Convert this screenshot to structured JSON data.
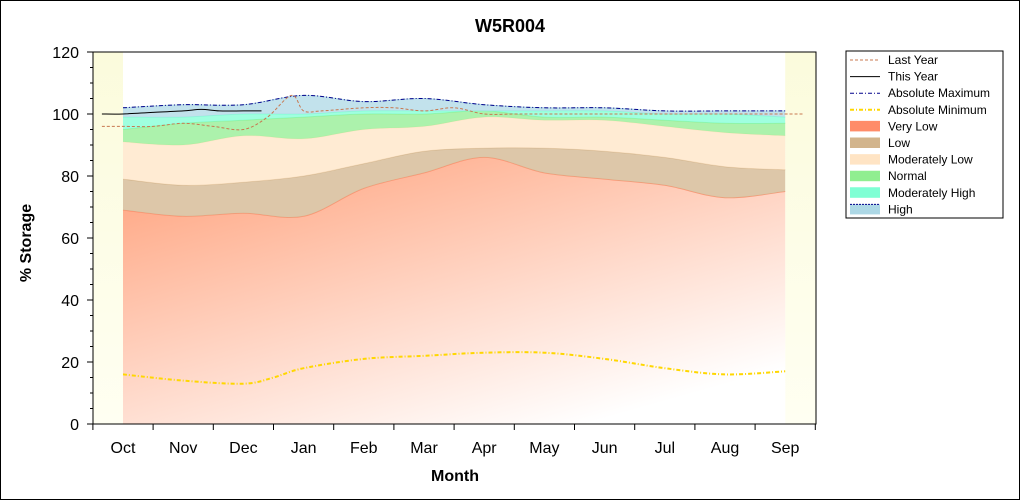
{
  "chart_data": {
    "type": "area",
    "title": "W5R004",
    "xlabel": "Month",
    "ylabel": "% Storage",
    "ylim": [
      0,
      120
    ],
    "yticks": [
      0,
      20,
      40,
      60,
      80,
      100,
      120
    ],
    "categories": [
      "Oct",
      "Nov",
      "Dec",
      "Jan",
      "Feb",
      "Mar",
      "Apr",
      "May",
      "Jun",
      "Jul",
      "Aug",
      "Sep"
    ],
    "legend_position": "right",
    "bands": [
      {
        "name": "Very Low",
        "color": "#ff8c69",
        "lower": [
          0,
          0,
          0,
          0,
          0,
          0,
          0,
          0,
          0,
          0,
          0,
          0
        ],
        "upper": [
          69,
          67,
          68,
          67,
          76,
          81,
          86,
          81,
          79,
          77,
          73,
          75
        ]
      },
      {
        "name": "Low",
        "color": "#d2b48c",
        "lower": [
          69,
          67,
          68,
          67,
          76,
          81,
          86,
          81,
          79,
          77,
          73,
          75
        ],
        "upper": [
          79,
          77,
          78,
          80,
          84,
          88,
          89,
          89,
          88,
          86,
          83,
          82
        ]
      },
      {
        "name": "Moderately Low",
        "color": "#ffe4c4",
        "lower": [
          79,
          77,
          78,
          80,
          84,
          88,
          89,
          89,
          88,
          86,
          83,
          82
        ],
        "upper": [
          91,
          90,
          93,
          92,
          95,
          96,
          99,
          98,
          98,
          96,
          94,
          93
        ]
      },
      {
        "name": "Normal",
        "color": "#90ee90",
        "lower": [
          91,
          90,
          93,
          92,
          95,
          96,
          99,
          98,
          98,
          96,
          94,
          93
        ],
        "upper": [
          95,
          97,
          98,
          99,
          100,
          100,
          101,
          99,
          99,
          98,
          97,
          97
        ]
      },
      {
        "name": "Moderately High",
        "color": "#7fffd4",
        "lower": [
          95,
          97,
          98,
          99,
          100,
          100,
          101,
          99,
          99,
          98,
          97,
          97
        ],
        "upper": [
          99,
          99,
          100,
          100,
          101,
          101,
          101,
          101,
          101,
          100,
          100,
          99
        ]
      },
      {
        "name": "High",
        "color": "#add8e6",
        "lower": [
          99,
          99,
          100,
          100,
          101,
          101,
          101,
          101,
          101,
          100,
          100,
          99
        ],
        "upper": [
          102,
          103,
          103,
          106,
          104,
          105,
          103,
          102,
          102,
          101,
          101,
          101
        ]
      }
    ],
    "series": [
      {
        "name": "Absolute Maximum",
        "style": "dash-dot",
        "color": "#00008b",
        "x": [
          0,
          1,
          2,
          3,
          4,
          5,
          6,
          7,
          8,
          9,
          10,
          11
        ],
        "values": [
          102,
          103,
          103,
          106,
          104,
          105,
          103,
          102,
          102,
          101,
          101,
          101
        ]
      },
      {
        "name": "Absolute Minimum",
        "style": "dash-dot",
        "color": "#ffd700",
        "x": [
          0,
          1,
          2,
          2.5,
          3,
          4,
          5,
          6,
          7,
          8,
          9,
          10,
          11
        ],
        "values": [
          16,
          14,
          13,
          15,
          18,
          21,
          22,
          23,
          23,
          21,
          18,
          16,
          17
        ]
      },
      {
        "name": "Last Year",
        "style": "dashed",
        "color": "#c87850",
        "x": [
          -0.35,
          0,
          0.5,
          1,
          1.5,
          2,
          2.4,
          2.8,
          3,
          3.3,
          4,
          4.5,
          5,
          5.5,
          6,
          6.5,
          7,
          8,
          9,
          10,
          11,
          11.3
        ],
        "values": [
          96,
          96,
          96,
          97,
          96,
          95,
          99,
          106,
          101,
          101,
          102,
          102,
          101,
          102,
          100,
          100,
          100,
          100,
          100,
          100,
          100,
          100
        ]
      },
      {
        "name": "This Year",
        "style": "solid",
        "color": "#000000",
        "x": [
          -0.35,
          0,
          0.5,
          1,
          1.3,
          1.6,
          2,
          2.3
        ],
        "values": [
          100,
          100,
          100.5,
          101,
          101.5,
          101,
          101,
          101
        ]
      }
    ],
    "legend": [
      "Last Year",
      "This Year",
      "Absolute Maximum",
      "Absolute Minimum",
      "Very Low",
      "Low",
      "Moderately Low",
      "Normal",
      "Moderately High",
      "High"
    ],
    "colors": {
      "plot_bg": "#fdfde6",
      "gradient_light": "#ffffff"
    }
  }
}
